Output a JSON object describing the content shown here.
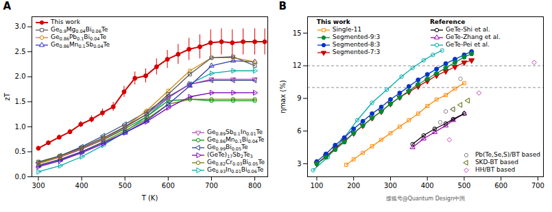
{
  "chart_data": [
    {
      "type": "line",
      "title": "A",
      "xlabel": "T (K)",
      "ylabel": "zT",
      "xlim": [
        285,
        830
      ],
      "ylim": [
        0.0,
        3.2
      ],
      "xticks": [
        300,
        400,
        500,
        600,
        700,
        800
      ],
      "yticks": [
        {
          "value": 0.0,
          "label": "0.0"
        },
        0.5,
        {
          "value": 1.0,
          "label": "1.0"
        },
        1.5,
        {
          "value": 2.0,
          "label": "2.0"
        },
        2.5,
        {
          "value": 3.0,
          "label": "3.0"
        }
      ],
      "series": [
        {
          "name": "This work",
          "color": "#d40000",
          "marker": "circle",
          "legend": "upper left",
          "x": [
            300,
            323,
            348,
            373,
            398,
            423,
            448,
            473,
            498,
            523,
            548,
            573,
            598,
            623,
            648,
            673,
            698,
            723,
            748,
            773,
            800,
            823
          ],
          "values": [
            0.57,
            0.68,
            0.79,
            0.9,
            1.05,
            1.15,
            1.28,
            1.4,
            1.7,
            1.97,
            2.02,
            2.2,
            2.35,
            2.45,
            2.55,
            2.6,
            2.68,
            2.7,
            2.68,
            2.7,
            2.7,
            2.7
          ],
          "errors": [
            0.04,
            0.04,
            0.05,
            0.05,
            0.06,
            0.07,
            0.08,
            0.09,
            0.11,
            0.13,
            0.14,
            0.16,
            0.18,
            0.2,
            0.22,
            0.24,
            0.26,
            0.26,
            0.26,
            0.26,
            0.26,
            0.26
          ]
        },
        {
          "name": "Ge0.9Mg0.04Bi0.06Te",
          "color": "#555555",
          "marker": "square-open",
          "legend": "upper left",
          "x": [
            300,
            350,
            400,
            450,
            500,
            550,
            600,
            650,
            700,
            750,
            800
          ],
          "values": [
            0.3,
            0.42,
            0.58,
            0.78,
            1.0,
            1.25,
            1.65,
            2.05,
            2.38,
            2.4,
            2.22
          ]
        },
        {
          "name": "Ge0.86Pb0.1Bi0.04Te",
          "color": "#cc8800",
          "marker": "circle-open",
          "legend": "upper left",
          "x": [
            300,
            350,
            400,
            450,
            500,
            550,
            600,
            650,
            700,
            750,
            800
          ],
          "values": [
            0.27,
            0.4,
            0.57,
            0.77,
            1.0,
            1.32,
            1.72,
            2.12,
            2.38,
            2.38,
            2.3
          ]
        },
        {
          "name": "Ge0.86Mn0.1Sb0.04Te",
          "color": "#3333bb",
          "marker": "triangle-up-open",
          "legend": "upper left",
          "x": [
            300,
            350,
            400,
            450,
            500,
            550,
            600,
            650,
            700,
            750,
            800
          ],
          "values": [
            0.22,
            0.34,
            0.5,
            0.68,
            0.88,
            1.12,
            1.45,
            1.82,
            2.22,
            2.32,
            2.3
          ]
        },
        {
          "name": "Ge0.89Sb0.1In0.01Te",
          "color": "#bb44bb",
          "marker": "triangle-down-open",
          "legend": "lower right",
          "x": [
            300,
            350,
            400,
            450,
            500,
            550,
            600,
            650,
            700,
            750,
            800
          ],
          "values": [
            0.26,
            0.39,
            0.55,
            0.75,
            0.99,
            1.25,
            1.58,
            1.85,
            1.95,
            1.95,
            1.95
          ]
        },
        {
          "name": "Ge0.86Mn0.1Bi0.04Te",
          "color": "#009900",
          "marker": "circle-open",
          "legend": "lower right",
          "x": [
            300,
            350,
            400,
            450,
            500,
            550,
            600,
            650,
            700,
            750,
            800
          ],
          "values": [
            0.28,
            0.4,
            0.56,
            0.74,
            0.96,
            1.2,
            1.52,
            1.55,
            1.52,
            1.52,
            1.52
          ]
        },
        {
          "name": "Ge0.99Bi0.05Te",
          "color": "#224488",
          "marker": "triangle-left-open",
          "legend": "lower right",
          "x": [
            300,
            350,
            400,
            450,
            500,
            550,
            600,
            650,
            700,
            750,
            800
          ],
          "values": [
            0.28,
            0.42,
            0.6,
            0.82,
            1.05,
            1.3,
            1.6,
            1.85,
            1.93,
            1.93,
            1.93
          ]
        },
        {
          "name": "(GeTe)17Sb2Te3",
          "color": "#7700bb",
          "marker": "triangle-right-open",
          "legend": "lower right",
          "x": [
            300,
            350,
            400,
            450,
            500,
            550,
            600,
            650,
            700,
            750,
            800
          ],
          "values": [
            0.2,
            0.32,
            0.48,
            0.66,
            0.88,
            1.1,
            1.38,
            1.6,
            1.68,
            1.68,
            1.68
          ]
        },
        {
          "name": "Ge0.82Cr0.03Bi0.05Te",
          "color": "#777700",
          "marker": "circle-open",
          "legend": "lower right",
          "x": [
            300,
            350,
            400,
            450,
            500,
            550,
            600,
            650,
            700,
            750,
            800
          ],
          "values": [
            0.23,
            0.35,
            0.5,
            0.7,
            0.92,
            1.15,
            1.45,
            1.55,
            1.55,
            1.55,
            1.55
          ]
        },
        {
          "name": "Ge0.93In0.01Bi0.06Te",
          "color": "#00aaaa",
          "marker": "triangle-right-open",
          "legend": "lower right",
          "x": [
            300,
            350,
            400,
            450,
            500,
            550,
            600,
            650,
            700,
            750,
            800
          ],
          "values": [
            0.1,
            0.22,
            0.4,
            0.63,
            0.9,
            1.2,
            1.58,
            1.86,
            2.07,
            2.12,
            2.12
          ]
        }
      ]
    },
    {
      "type": "line",
      "title": "B",
      "ylabel": "ηmax (%)",
      "xlim": [
        75,
        715
      ],
      "ylim": [
        1.8,
        16.5
      ],
      "xticks": [
        100,
        200,
        300,
        400,
        500,
        600,
        700
      ],
      "yticks": [
        3,
        6,
        9,
        12,
        15
      ],
      "hlines": [
        10.0,
        12.0
      ],
      "annotations": [
        "搜狐号@Quantum Design中国"
      ],
      "series": [
        {
          "name": "Single-11",
          "group": "This work",
          "color": "#ff8800",
          "marker": "square-open",
          "legend": "upper left",
          "x": [
            180,
            200,
            225,
            250,
            275,
            300,
            325,
            350,
            375,
            400,
            425,
            450,
            475,
            500
          ],
          "values": [
            2.9,
            3.4,
            4.0,
            4.6,
            5.2,
            5.8,
            6.4,
            7.0,
            7.6,
            8.3,
            8.9,
            9.3,
            9.9,
            10.4
          ]
        },
        {
          "name": "Segmented-9:3",
          "group": "This work",
          "color": "#008833",
          "marker": "pentagon",
          "legend": "upper left",
          "x": [
            100,
            125,
            150,
            175,
            200,
            225,
            250,
            275,
            300,
            325,
            350,
            375,
            400,
            425,
            450,
            475,
            500,
            520
          ],
          "values": [
            3.0,
            3.6,
            4.3,
            5.0,
            5.8,
            6.5,
            7.2,
            7.8,
            8.5,
            9.1,
            9.7,
            10.3,
            10.8,
            11.3,
            11.8,
            12.3,
            12.8,
            13.1
          ]
        },
        {
          "name": "Segmented-8:3",
          "group": "This work",
          "color": "#0033cc",
          "marker": "circle",
          "legend": "upper left",
          "x": [
            100,
            125,
            150,
            175,
            200,
            225,
            250,
            275,
            300,
            325,
            350,
            375,
            400,
            425,
            450,
            475,
            500,
            520
          ],
          "values": [
            3.2,
            3.9,
            4.7,
            5.4,
            6.2,
            6.9,
            7.6,
            8.2,
            8.9,
            9.5,
            10.1,
            10.7,
            11.2,
            11.7,
            12.2,
            12.6,
            13.0,
            13.3
          ]
        },
        {
          "name": "Segmented-7:3",
          "group": "This work",
          "color": "#cc0000",
          "marker": "triangle-down",
          "legend": "upper left",
          "x": [
            100,
            125,
            150,
            175,
            200,
            225,
            250,
            275,
            300,
            325,
            350,
            375,
            400,
            425,
            450,
            475,
            500,
            520
          ],
          "values": [
            3.0,
            3.7,
            4.4,
            5.1,
            5.8,
            6.5,
            7.2,
            7.8,
            8.5,
            9.1,
            9.6,
            10.1,
            10.6,
            11.1,
            11.5,
            11.9,
            12.3,
            12.5
          ]
        },
        {
          "name": "GeTe-Shi et al.",
          "group": "Reference",
          "color": "#000000",
          "marker": "circle-open",
          "legend": "upper left",
          "x": [
            360,
            390,
            420,
            450,
            470,
            500
          ],
          "values": [
            4.8,
            5.6,
            6.2,
            6.7,
            7.1,
            7.6
          ]
        },
        {
          "name": "GeTe-Zhang et al.",
          "group": "Reference",
          "color": "#9900aa",
          "marker": "triangle-up-open",
          "legend": "upper left",
          "x": [
            360,
            390,
            420,
            450,
            470,
            500
          ],
          "values": [
            4.5,
            5.3,
            5.9,
            6.5,
            7.0,
            7.6
          ]
        },
        {
          "name": "GeTe-Pei et al.",
          "group": "Reference",
          "color": "#00aaaa",
          "marker": "circle-open",
          "legend": "upper left",
          "x": [
            90,
            130,
            170,
            210,
            250,
            290,
            330,
            360,
            390,
            415,
            440
          ],
          "values": [
            2.4,
            3.6,
            5.2,
            7.0,
            8.6,
            9.8,
            11.0,
            11.8,
            12.5,
            13.0,
            13.4
          ]
        },
        {
          "name": "Pb(Te,Se,S)/BT based",
          "type": "scatter",
          "color": "#888888",
          "marker": "circle-open",
          "legend": "lower right",
          "x": [
            420,
            435,
            450,
            470,
            490
          ],
          "values": [
            6.2,
            6.8,
            7.8,
            8.0,
            10.8
          ]
        },
        {
          "name": "SKD-BT based",
          "type": "scatter",
          "color": "#556600",
          "marker": "triangle-left-open",
          "legend": "lower right",
          "x": [
            470,
            490,
            510
          ],
          "values": [
            8.0,
            8.4,
            8.8
          ]
        },
        {
          "name": "HH/BT based",
          "type": "scatter",
          "color": "#cc44bb",
          "marker": "diamond-open",
          "legend": "lower right",
          "x": [
            460,
            540,
            690
          ],
          "values": [
            5.2,
            9.5,
            12.3
          ]
        }
      ]
    }
  ]
}
